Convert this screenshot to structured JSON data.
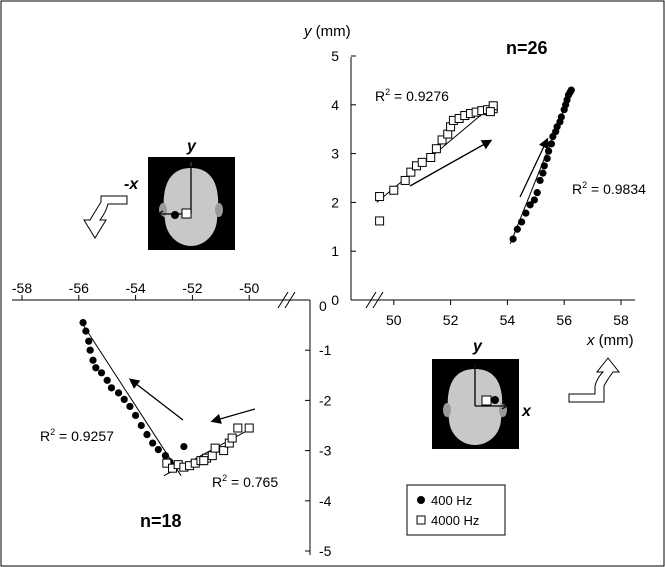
{
  "chart_data": [
    {
      "type": "scatter",
      "panel": "upper-right",
      "count_label": "n=26",
      "xlabel": "x (mm)",
      "ylabel": "y (mm)",
      "xlim": [
        48,
        58
      ],
      "ylim": [
        0,
        5
      ],
      "x_ticks": [
        "50",
        "52",
        "54",
        "56",
        "58"
      ],
      "y_ticks": [
        "0",
        "1",
        "2",
        "3",
        "4",
        "5"
      ],
      "head_icon_axis_labels": [
        "y",
        "x"
      ],
      "series": [
        {
          "name": "4000 Hz",
          "marker": "open-square",
          "r2_label": "R",
          "r2_sup": "2",
          "r2_value": " = 0.9276",
          "trend": [
            [
              49.4,
              2.0
            ],
            [
              53.5,
              4.0
            ]
          ],
          "points": [
            [
              49.5,
              1.62
            ],
            [
              49.5,
              2.12
            ],
            [
              50.0,
              2.25
            ],
            [
              50.4,
              2.45
            ],
            [
              50.6,
              2.62
            ],
            [
              50.8,
              2.75
            ],
            [
              51.0,
              2.82
            ],
            [
              51.3,
              2.92
            ],
            [
              51.5,
              3.1
            ],
            [
              51.7,
              3.28
            ],
            [
              51.9,
              3.4
            ],
            [
              52.0,
              3.55
            ],
            [
              52.1,
              3.68
            ],
            [
              52.3,
              3.72
            ],
            [
              52.5,
              3.78
            ],
            [
              52.7,
              3.82
            ],
            [
              52.9,
              3.85
            ],
            [
              53.1,
              3.88
            ],
            [
              53.3,
              3.9
            ],
            [
              53.5,
              3.92
            ],
            [
              53.5,
              3.98
            ],
            [
              53.4,
              3.86
            ]
          ]
        },
        {
          "name": "400 Hz",
          "marker": "filled-circle",
          "r2_label": "R",
          "r2_sup": "2",
          "r2_value": " = 0.9834",
          "trend": [
            [
              54.1,
              1.15
            ],
            [
              56.3,
              4.35
            ]
          ],
          "points": [
            [
              54.2,
              1.25
            ],
            [
              54.35,
              1.45
            ],
            [
              54.5,
              1.6
            ],
            [
              54.65,
              1.78
            ],
            [
              54.8,
              1.95
            ],
            [
              54.95,
              2.05
            ],
            [
              55.05,
              2.2
            ],
            [
              55.15,
              2.45
            ],
            [
              55.25,
              2.6
            ],
            [
              55.3,
              2.75
            ],
            [
              55.4,
              2.9
            ],
            [
              55.45,
              3.05
            ],
            [
              55.55,
              3.2
            ],
            [
              55.6,
              3.35
            ],
            [
              55.7,
              3.45
            ],
            [
              55.75,
              3.55
            ],
            [
              55.85,
              3.65
            ],
            [
              55.9,
              3.75
            ],
            [
              56.0,
              3.9
            ],
            [
              56.05,
              4.0
            ],
            [
              56.1,
              4.1
            ],
            [
              56.15,
              4.2
            ],
            [
              56.2,
              4.25
            ],
            [
              56.25,
              4.3
            ]
          ]
        }
      ]
    },
    {
      "type": "scatter",
      "panel": "lower-left",
      "count_label": "n=18",
      "xlim": [
        -58,
        -48
      ],
      "ylim": [
        -5,
        0
      ],
      "x_ticks": [
        "-58",
        "-56",
        "-54",
        "-52",
        "-50"
      ],
      "y_ticks": [
        "0",
        "-1",
        "-2",
        "-3",
        "-4",
        "-5"
      ],
      "head_icon_axis_labels": [
        "y",
        "-x"
      ],
      "series": [
        {
          "name": "400 Hz",
          "marker": "filled-circle",
          "r2_label": "R",
          "r2_sup": "2",
          "r2_value": " = 0.9257",
          "trend": [
            [
              -55.9,
              -0.45
            ],
            [
              -52.4,
              -3.5
            ]
          ],
          "points": [
            [
              -55.85,
              -0.45
            ],
            [
              -55.75,
              -0.62
            ],
            [
              -55.65,
              -0.82
            ],
            [
              -55.6,
              -1.0
            ],
            [
              -55.5,
              -1.2
            ],
            [
              -55.4,
              -1.35
            ],
            [
              -55.2,
              -1.45
            ],
            [
              -55.0,
              -1.6
            ],
            [
              -54.85,
              -1.75
            ],
            [
              -54.6,
              -1.85
            ],
            [
              -54.4,
              -1.98
            ],
            [
              -54.2,
              -2.12
            ],
            [
              -54.0,
              -2.3
            ],
            [
              -53.8,
              -2.5
            ],
            [
              -53.6,
              -2.68
            ],
            [
              -53.4,
              -2.85
            ],
            [
              -53.2,
              -2.98
            ],
            [
              -52.95,
              -3.1
            ],
            [
              -52.8,
              -3.22
            ],
            [
              -52.65,
              -3.3
            ],
            [
              -52.3,
              -2.92
            ]
          ]
        },
        {
          "name": "4000 Hz",
          "marker": "open-square",
          "r2_label": "R",
          "r2_sup": "2",
          "r2_value": " = 0.765",
          "trend": [
            [
              -53.0,
              -3.5
            ],
            [
              -49.9,
              -2.55
            ]
          ],
          "points": [
            [
              -52.9,
              -3.25
            ],
            [
              -52.7,
              -3.35
            ],
            [
              -52.5,
              -3.28
            ],
            [
              -52.3,
              -3.33
            ],
            [
              -52.1,
              -3.3
            ],
            [
              -51.9,
              -3.25
            ],
            [
              -51.7,
              -3.2
            ],
            [
              -51.5,
              -3.15
            ],
            [
              -51.3,
              -3.1
            ],
            [
              -51.2,
              -2.95
            ],
            [
              -50.9,
              -3.0
            ],
            [
              -50.7,
              -2.85
            ],
            [
              -50.6,
              -2.75
            ],
            [
              -50.4,
              -2.55
            ],
            [
              -50.0,
              -2.55
            ],
            [
              -51.6,
              -3.2
            ]
          ]
        }
      ]
    }
  ],
  "legend": {
    "placement": "bottom-right",
    "items": [
      {
        "label": "400 Hz",
        "marker": "filled-circle"
      },
      {
        "label": "4000 Hz",
        "marker": "open-square"
      }
    ]
  }
}
